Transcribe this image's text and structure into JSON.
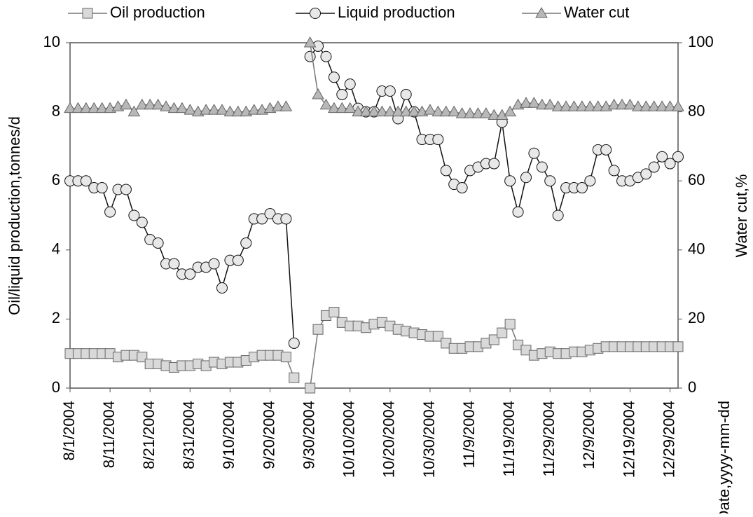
{
  "chart_data": {
    "type": "line",
    "x": [
      "8/1/2004",
      "8/3/2004",
      "8/5/2004",
      "8/7/2004",
      "8/9/2004",
      "8/11/2004",
      "8/13/2004",
      "8/15/2004",
      "8/17/2004",
      "8/19/2004",
      "8/21/2004",
      "8/23/2004",
      "8/25/2004",
      "8/27/2004",
      "8/29/2004",
      "8/31/2004",
      "9/2/2004",
      "9/4/2004",
      "9/6/2004",
      "9/8/2004",
      "9/10/2004",
      "9/12/2004",
      "9/14/2004",
      "9/16/2004",
      "9/18/2004",
      "9/20/2004",
      "9/22/2004",
      "9/24/2004",
      "9/26/2004",
      "9/28/2004",
      "9/30/2004",
      "10/2/2004",
      "10/4/2004",
      "10/6/2004",
      "10/8/2004",
      "10/10/2004",
      "10/12/2004",
      "10/14/2004",
      "10/16/2004",
      "10/18/2004",
      "10/20/2004",
      "10/22/2004",
      "10/24/2004",
      "10/26/2004",
      "10/28/2004",
      "10/30/2004",
      "11/1/2004",
      "11/3/2004",
      "11/5/2004",
      "11/7/2004",
      "11/9/2004",
      "11/11/2004",
      "11/13/2004",
      "11/15/2004",
      "11/17/2004",
      "11/19/2004",
      "11/21/2004",
      "11/23/2004",
      "11/25/2004",
      "11/27/2004",
      "11/29/2004",
      "12/1/2004",
      "12/3/2004",
      "12/5/2004",
      "12/7/2004",
      "12/9/2004",
      "12/11/2004",
      "12/13/2004",
      "12/15/2004",
      "12/17/2004",
      "12/19/2004",
      "12/21/2004",
      "12/23/2004",
      "12/25/2004",
      "12/27/2004",
      "12/29/2004",
      "12/31/2004"
    ],
    "series": [
      {
        "name": "Oil production",
        "color": "#d9d9d9",
        "marker": "square",
        "values": [
          1.0,
          1.0,
          1.0,
          1.0,
          1.0,
          1.0,
          0.9,
          0.95,
          0.95,
          0.9,
          0.7,
          0.7,
          0.65,
          0.6,
          0.65,
          0.65,
          0.7,
          0.65,
          0.75,
          0.7,
          0.75,
          0.75,
          0.8,
          0.9,
          0.95,
          0.95,
          0.95,
          0.9,
          0.3,
          null,
          0,
          1.7,
          2.1,
          2.2,
          1.9,
          1.8,
          1.8,
          1.75,
          1.85,
          1.9,
          1.8,
          1.7,
          1.65,
          1.6,
          1.55,
          1.5,
          1.5,
          1.3,
          1.15,
          1.15,
          1.2,
          1.2,
          1.3,
          1.4,
          1.6,
          1.85,
          1.25,
          1.1,
          0.95,
          1.0,
          1.05,
          1.0,
          1.0,
          1.05,
          1.05,
          1.1,
          1.15,
          1.2,
          1.2,
          1.2,
          1.2,
          1.2,
          1.2,
          1.2,
          1.2,
          1.2,
          1.2
        ]
      },
      {
        "name": "Liquid production",
        "color": "#e8e8e8",
        "marker": "circle",
        "values": [
          6.0,
          6.0,
          6.0,
          5.8,
          5.8,
          5.1,
          5.75,
          5.75,
          5.0,
          4.8,
          4.3,
          4.2,
          3.6,
          3.6,
          3.3,
          3.3,
          3.5,
          3.5,
          3.6,
          2.9,
          3.7,
          3.7,
          4.2,
          4.9,
          4.9,
          5.05,
          4.9,
          4.9,
          1.3,
          null,
          9.6,
          9.9,
          9.6,
          9.0,
          8.5,
          8.8,
          8.1,
          8.0,
          8.0,
          8.6,
          8.6,
          7.8,
          8.5,
          8.0,
          7.2,
          7.2,
          7.2,
          6.3,
          5.9,
          5.8,
          6.3,
          6.4,
          6.5,
          6.5,
          7.7,
          6.0,
          5.1,
          6.1,
          6.8,
          6.4,
          6.0,
          5.0,
          5.8,
          5.8,
          5.8,
          6.0,
          6.9,
          6.9,
          6.3,
          6.0,
          6.0,
          6.1,
          6.2,
          6.4,
          6.7,
          6.5,
          6.7
        ]
      },
      {
        "name": "Water cut",
        "color": "#b8b8b8",
        "marker": "triangle",
        "axis": "y2",
        "values": [
          81,
          81,
          81,
          81,
          81,
          81,
          81.5,
          82,
          80,
          82,
          82,
          82,
          81.5,
          81,
          81,
          80.5,
          80,
          80.5,
          80.5,
          80.5,
          80,
          80,
          80,
          80.5,
          80.5,
          81,
          81.5,
          81.5,
          null,
          null,
          100,
          85,
          82,
          81,
          81,
          81,
          80,
          80,
          80,
          80,
          80,
          80,
          80,
          80,
          80,
          80.5,
          80,
          80,
          80,
          79.5,
          79.5,
          79.5,
          79.5,
          79,
          79,
          80,
          82,
          82.5,
          82.5,
          82,
          82,
          81.5,
          81.5,
          81.5,
          81.5,
          81.5,
          81.5,
          81.5,
          82,
          82,
          82,
          81.5,
          81.5,
          81.5,
          81.5,
          81.5,
          81.5
        ]
      }
    ],
    "y_label": "Oil/liquid production,tonnes/d",
    "y2_label": "Water cut,%",
    "x_label": "Date,yyyy-mm-dd",
    "xlim": [
      "8/1/2004",
      "12/31/2004"
    ],
    "xticks": [
      "8/1/2004",
      "8/11/2004",
      "8/21/2004",
      "8/31/2004",
      "9/10/2004",
      "9/20/2004",
      "9/30/2004",
      "10/10/2004",
      "10/20/2004",
      "10/30/2004",
      "11/9/2004",
      "11/19/2004",
      "11/29/2004",
      "12/9/2004",
      "12/19/2004",
      "12/29/2004"
    ],
    "ylim": [
      0,
      10
    ],
    "yticks": [
      0,
      2,
      4,
      6,
      8,
      10
    ],
    "y2lim": [
      0,
      100
    ],
    "y2ticks": [
      0,
      20,
      40,
      60,
      80,
      100
    ],
    "legend": "top",
    "grid": false
  }
}
